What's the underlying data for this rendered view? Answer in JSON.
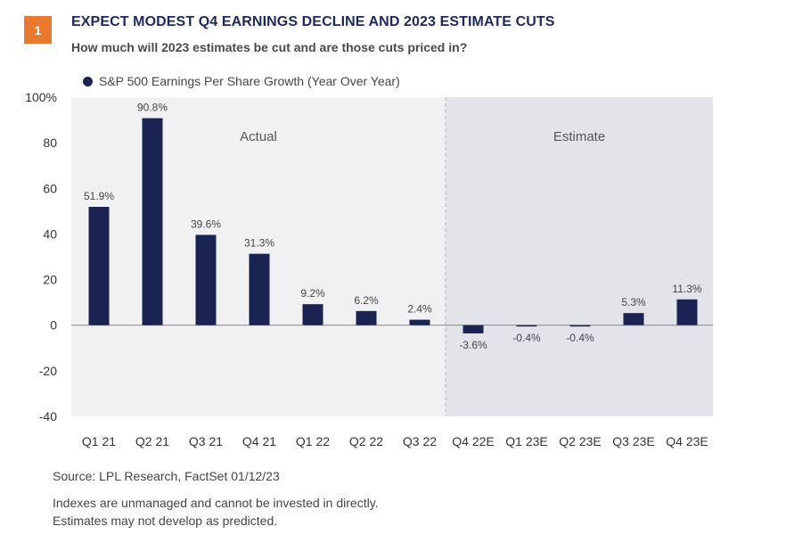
{
  "badge": "1",
  "header": {
    "title": "EXPECT MODEST Q4 EARNINGS DECLINE AND 2023 ESTIMATE CUTS",
    "subtitle": "How much will 2023 estimates be cut and are those cuts priced in?"
  },
  "footer": {
    "source": "Source: LPL Research, FactSet  01/12/23",
    "note_line1": "Indexes are unmanaged and cannot be invested in directly.",
    "note_line2": "Estimates may not develop as predicted."
  },
  "chart_data": {
    "type": "bar",
    "categories": [
      "Q1 21",
      "Q2 21",
      "Q3 21",
      "Q4 21",
      "Q1 22",
      "Q2 22",
      "Q3 22",
      "Q4 22E",
      "Q1 23E",
      "Q2 23E",
      "Q3 23E",
      "Q4 23E"
    ],
    "series": [
      {
        "name": "S&P 500 Earnings Per Share Growth (Year Over Year)",
        "values": [
          51.9,
          90.8,
          39.6,
          31.3,
          9.2,
          6.2,
          2.4,
          -3.6,
          -0.4,
          -0.4,
          5.3,
          11.3
        ],
        "labels": [
          "51.9%",
          "90.8%",
          "39.6%",
          "31.3%",
          "9.2%",
          "6.2%",
          "2.4%",
          "-3.6%",
          "-0.4%",
          "-0.4%",
          "5.3%",
          "11.3%"
        ]
      }
    ],
    "ylim": [
      -40,
      100
    ],
    "yticks": [
      100,
      80,
      60,
      40,
      20,
      0,
      -20,
      -40
    ],
    "ytick_labels": [
      "100%",
      "80",
      "60",
      "40",
      "20",
      "0",
      "-20",
      "-40"
    ],
    "regions": [
      {
        "label": "Actual",
        "from": "Q1 21",
        "to": "Q3 22"
      },
      {
        "label": "Estimate",
        "from": "Q4 22E",
        "to": "Q4 23E"
      }
    ],
    "legend": "top-left",
    "grid": false,
    "colors": {
      "bar": "#1b2352",
      "estimate_shade": "#e3e4ea",
      "plot_bg": "#f1f1f3",
      "badge": "#e9792f",
      "title": "#1c2a59"
    }
  }
}
